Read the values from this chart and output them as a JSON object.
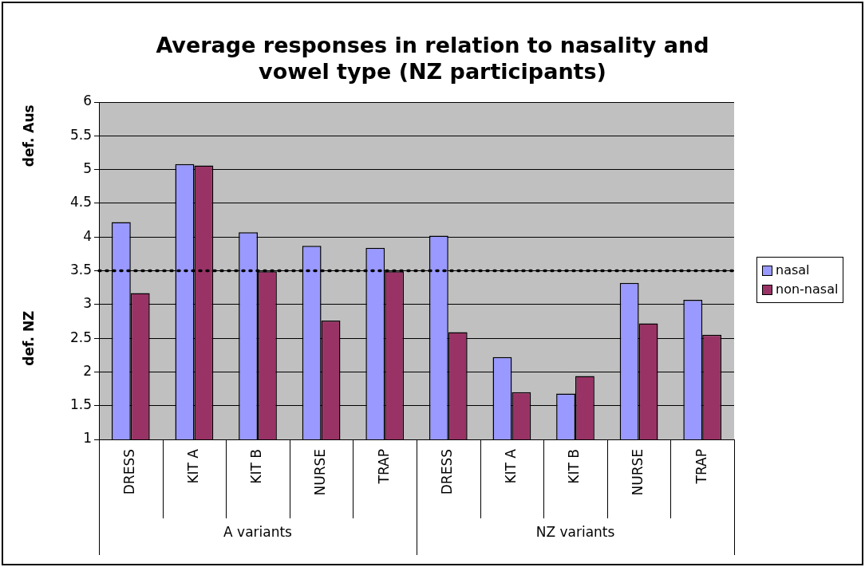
{
  "chart_data": {
    "type": "bar",
    "title": "Average responses in relation to nasality and vowel type (NZ participants)",
    "categories": [
      "DRESS",
      "KIT A",
      "KIT B",
      "NURSE",
      "TRAP",
      "DRESS",
      "KIT A",
      "KIT B",
      "NURSE",
      "TRAP"
    ],
    "series": [
      {
        "name": "nasal",
        "color": "#9999ff",
        "values": [
          4.22,
          5.08,
          4.07,
          3.87,
          3.84,
          4.02,
          2.22,
          1.68,
          3.32,
          3.07
        ]
      },
      {
        "name": "non-nasal",
        "color": "#993366",
        "values": [
          3.17,
          5.06,
          3.49,
          2.76,
          3.49,
          2.59,
          1.7,
          1.94,
          2.72,
          2.55
        ]
      }
    ],
    "ylim": [
      1,
      6
    ],
    "yticks": [
      1,
      1.5,
      2,
      2.5,
      3,
      3.5,
      4,
      4.5,
      5,
      5.5,
      6
    ],
    "grid": "y",
    "legend": "right",
    "ref_lines": [
      {
        "axis": "y",
        "value": 3.5,
        "color": "#000000",
        "line_style": "dotted"
      }
    ],
    "annotations": [
      "def. Aus",
      "def. NZ",
      "A variants",
      "NZ variants"
    ]
  }
}
